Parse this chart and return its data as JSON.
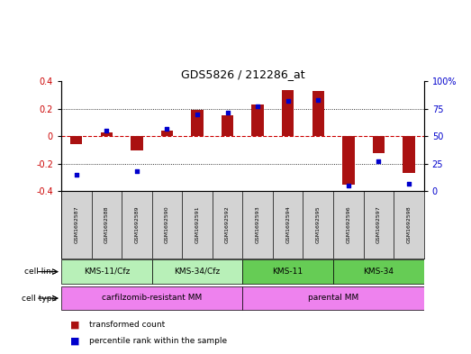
{
  "title": "GDS5826 / 212286_at",
  "samples": [
    "GSM1692587",
    "GSM1692588",
    "GSM1692589",
    "GSM1692590",
    "GSM1692591",
    "GSM1692592",
    "GSM1692593",
    "GSM1692594",
    "GSM1692595",
    "GSM1692596",
    "GSM1692597",
    "GSM1692598"
  ],
  "transformed_count": [
    -0.06,
    0.03,
    -0.1,
    0.04,
    0.19,
    0.15,
    0.23,
    0.34,
    0.33,
    -0.35,
    -0.12,
    -0.27
  ],
  "percentile_rank": [
    15,
    55,
    18,
    57,
    70,
    72,
    77,
    82,
    83,
    5,
    27,
    7
  ],
  "cell_line_groups": [
    {
      "label": "KMS-11/Cfz",
      "start": 0,
      "end": 3
    },
    {
      "label": "KMS-34/Cfz",
      "start": 3,
      "end": 6
    },
    {
      "label": "KMS-11",
      "start": 6,
      "end": 9
    },
    {
      "label": "KMS-34",
      "start": 9,
      "end": 12
    }
  ],
  "cell_type_groups": [
    {
      "label": "carfilzomib-resistant MM",
      "start": 0,
      "end": 6
    },
    {
      "label": "parental MM",
      "start": 6,
      "end": 12
    }
  ],
  "bar_color": "#aa1111",
  "dot_color": "#0000cc",
  "left_ylim": [
    -0.4,
    0.4
  ],
  "right_ylim": [
    0,
    100
  ],
  "left_yticks": [
    -0.4,
    -0.2,
    0.0,
    0.2,
    0.4
  ],
  "right_yticks": [
    0,
    25,
    50,
    75,
    100
  ],
  "right_yticklabels": [
    "0",
    "25",
    "50",
    "75",
    "100%"
  ],
  "zero_line_color": "#cc0000",
  "dotted_line_color": "#000000",
  "bg_sample": "#d3d3d3",
  "cell_line_light": "#b8f0b8",
  "cell_line_dark": "#66cc55",
  "cell_type_bg": "#ee82ee"
}
